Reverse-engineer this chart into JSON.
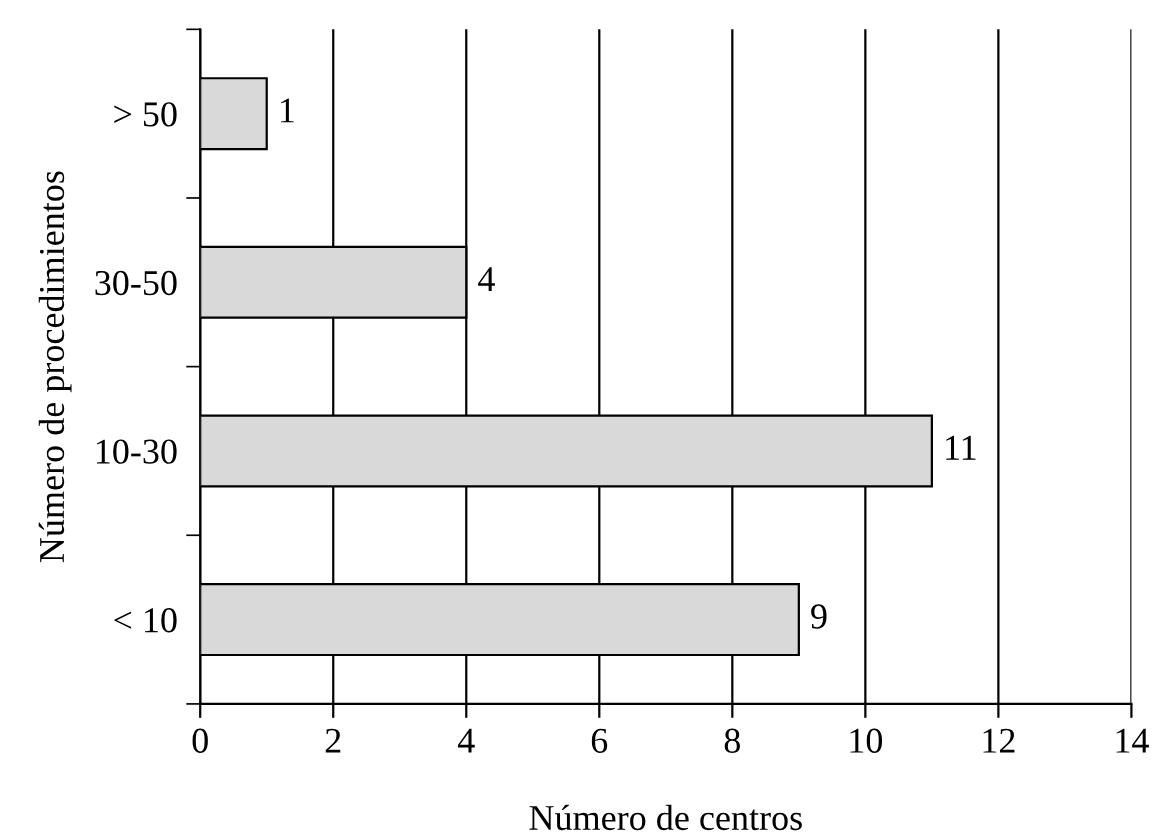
{
  "chart_data": {
    "type": "bar",
    "orientation": "horizontal",
    "xlabel": "Número de centros",
    "ylabel": "Número de procedimientos",
    "categories": [
      "> 50",
      "30-50",
      "10-30",
      "< 10"
    ],
    "values": [
      1,
      4,
      11,
      9
    ],
    "color": "#d9d9d9",
    "xlim": [
      0,
      14
    ],
    "xticks": [
      0,
      2,
      4,
      6,
      8,
      10,
      12,
      14
    ],
    "grid": "x",
    "data_labels": true,
    "legend": false
  }
}
